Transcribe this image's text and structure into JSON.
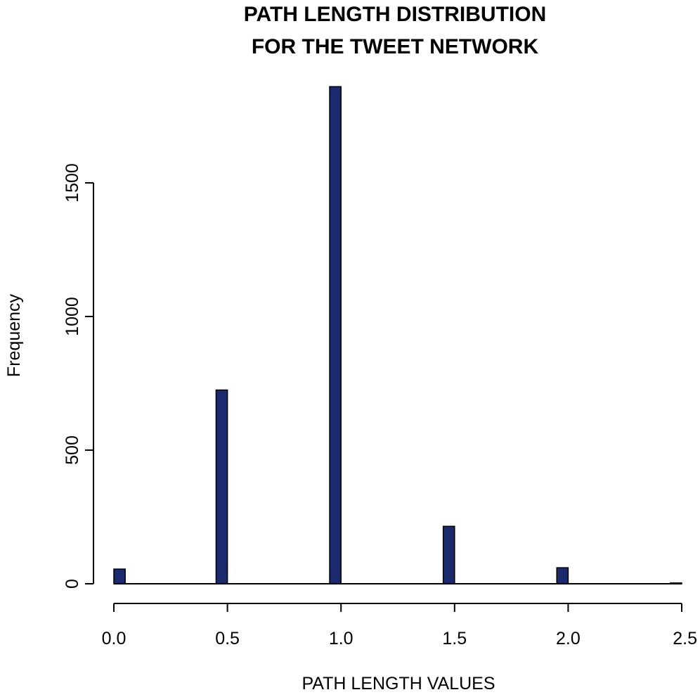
{
  "chart_data": {
    "type": "bar",
    "title": "PATH LENGTH DISTRIBUTION\nFOR THE TWEET NETWORK",
    "xlabel": "PATH LENGTH VALUES",
    "ylabel": "Frequency",
    "xlim": [
      0,
      2.5
    ],
    "ylim": [
      0,
      1860
    ],
    "bin_width": 0.05,
    "x_ticks": [
      0.0,
      0.5,
      1.0,
      1.5,
      2.0,
      2.5
    ],
    "x_tick_labels": [
      "0.0",
      "0.5",
      "1.0",
      "1.5",
      "2.0",
      "2.5"
    ],
    "y_ticks": [
      0,
      500,
      1000,
      1500
    ],
    "y_tick_labels": [
      "0",
      "500",
      "1000",
      "1500"
    ],
    "grid": false,
    "bar_color": "#1a2a6c",
    "bars": [
      {
        "x0": 0.0,
        "x1": 0.05,
        "value": 55
      },
      {
        "x0": 0.45,
        "x1": 0.5,
        "value": 725
      },
      {
        "x0": 0.95,
        "x1": 1.0,
        "value": 1860
      },
      {
        "x0": 1.45,
        "x1": 1.5,
        "value": 215
      },
      {
        "x0": 1.95,
        "x1": 2.0,
        "value": 60
      },
      {
        "x0": 2.45,
        "x1": 2.5,
        "value": 3
      }
    ]
  }
}
